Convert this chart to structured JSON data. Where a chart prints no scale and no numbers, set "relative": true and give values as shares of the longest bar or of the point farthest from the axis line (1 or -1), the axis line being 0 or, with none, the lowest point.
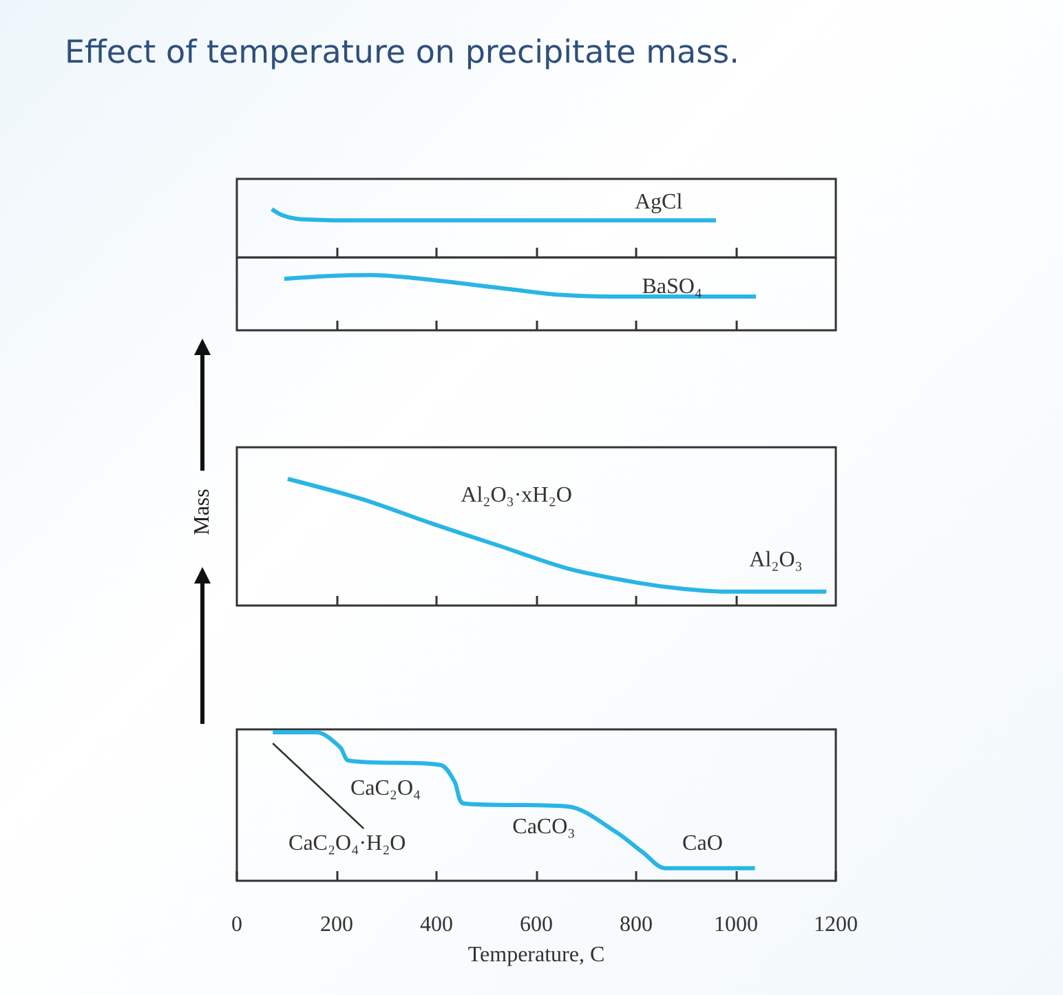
{
  "chart_data": [
    {
      "type": "line",
      "title": "Effect of temperature on precipitate mass.",
      "relative": true,
      "tick_labels": false,
      "marker": "none",
      "xlim": [
        0,
        1200
      ],
      "xticks": [
        200,
        400,
        600,
        800,
        1000
      ],
      "x": [
        70,
        90,
        120,
        160,
        200,
        960
      ],
      "series": [
        {
          "color": "#29b5e6",
          "values": [
            1,
            0.88,
            0.8,
            0.78,
            0.77,
            0.77
          ]
        }
      ],
      "annotations": [
        "AgCl"
      ]
    },
    {
      "type": "line",
      "relative": true,
      "tick_labels": false,
      "marker": "none",
      "xlim": [
        0,
        1200
      ],
      "xticks": [
        200,
        400,
        600,
        800,
        1000
      ],
      "x": [
        95,
        180,
        270,
        350,
        450,
        550,
        650,
        750,
        1040
      ],
      "series": [
        {
          "color": "#29b5e6",
          "values": [
            0.93,
            0.98,
            1,
            0.95,
            0.85,
            0.74,
            0.64,
            0.61,
            0.61
          ]
        }
      ],
      "annotations": [
        "BaSO₄"
      ]
    },
    {
      "type": "line",
      "relative": true,
      "tick_labels": false,
      "marker": "none",
      "ylabel": "Mass",
      "xlim": [
        0,
        1200
      ],
      "xticks": [
        200,
        400,
        600,
        800,
        1000
      ],
      "x": [
        102,
        251,
        389,
        527,
        665,
        803,
        897,
        988,
        1181
      ],
      "series": [
        {
          "color": "#29b5e6",
          "values": [
            1,
            0.84,
            0.65,
            0.47,
            0.29,
            0.18,
            0.13,
            0.11,
            0.11
          ]
        }
      ],
      "annotations": [
        "Al₂O₃·xH₂O",
        "Al₂O₃"
      ]
    },
    {
      "type": "line",
      "relative": true,
      "tick_labels": "x",
      "marker": "none",
      "xlabel": "Temperature, C",
      "xlim": [
        0,
        1200
      ],
      "xticks": [
        0,
        200,
        400,
        600,
        800,
        1000,
        1200
      ],
      "x": [
        72,
        160,
        207,
        224,
        408,
        436,
        455,
        665,
        759,
        814,
        858,
        1038
      ],
      "series": [
        {
          "color": "#29b5e6",
          "values": [
            1,
            1,
            0.9,
            0.81,
            0.78,
            0.67,
            0.52,
            0.5,
            0.33,
            0.19,
            0.085,
            0.085
          ]
        }
      ],
      "annotations": [
        "CaC₂O₄",
        "CaC₂O₄·H₂O",
        "CaCO₃",
        "CaO"
      ]
    }
  ]
}
